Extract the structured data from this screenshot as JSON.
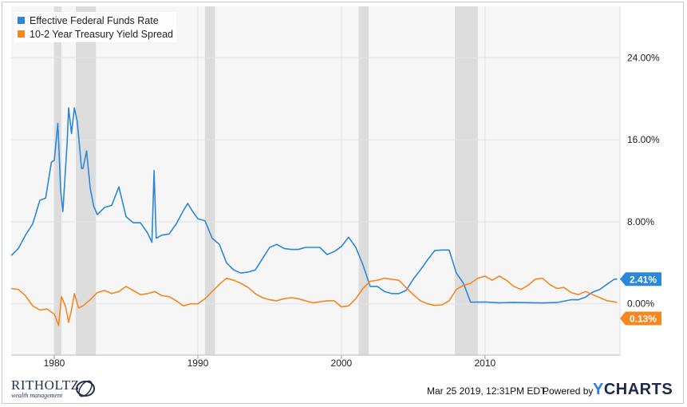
{
  "chart_data": {
    "type": "line",
    "title": "",
    "xlabel": "",
    "ylabel": "",
    "xlim": [
      1977,
      2019.4
    ],
    "ylim": [
      -5,
      29
    ],
    "x_ticks": [
      1980,
      1990,
      2000,
      2010
    ],
    "x_tick_labels": [
      "1980",
      "1990",
      "2000",
      "2010"
    ],
    "y_ticks": [
      0,
      8,
      16,
      24
    ],
    "y_tick_labels": [
      "0.00%",
      "8.00%",
      "16.00%",
      "24.00%"
    ],
    "grid": true,
    "legend_position": "top-left",
    "recessions": [
      [
        1980.0,
        1980.5
      ],
      [
        1981.5,
        1982.9
      ],
      [
        1990.5,
        1991.2
      ],
      [
        2001.2,
        2001.9
      ],
      [
        2007.9,
        2009.5
      ]
    ],
    "series": [
      {
        "name": "Effective Federal Funds Rate",
        "color": "#2b88d8",
        "end_label": "2.41%",
        "points": [
          [
            1977.0,
            4.7
          ],
          [
            1977.5,
            5.4
          ],
          [
            1978.0,
            6.7
          ],
          [
            1978.5,
            7.8
          ],
          [
            1979.0,
            10.1
          ],
          [
            1979.4,
            10.3
          ],
          [
            1979.8,
            13.8
          ],
          [
            1980.0,
            14.0
          ],
          [
            1980.25,
            17.6
          ],
          [
            1980.45,
            11.0
          ],
          [
            1980.6,
            9.0
          ],
          [
            1980.9,
            15.8
          ],
          [
            1981.0,
            19.1
          ],
          [
            1981.2,
            16.6
          ],
          [
            1981.4,
            19.1
          ],
          [
            1981.6,
            17.8
          ],
          [
            1981.9,
            13.2
          ],
          [
            1982.0,
            13.2
          ],
          [
            1982.25,
            14.9
          ],
          [
            1982.5,
            11.3
          ],
          [
            1982.75,
            9.5
          ],
          [
            1983.0,
            8.7
          ],
          [
            1983.5,
            9.4
          ],
          [
            1984.0,
            9.6
          ],
          [
            1984.5,
            11.4
          ],
          [
            1985.0,
            8.5
          ],
          [
            1985.5,
            7.9
          ],
          [
            1986.0,
            7.9
          ],
          [
            1986.5,
            6.9
          ],
          [
            1986.8,
            6.0
          ],
          [
            1986.95,
            13.0
          ],
          [
            1987.1,
            6.4
          ],
          [
            1987.5,
            6.7
          ],
          [
            1988.0,
            6.8
          ],
          [
            1988.5,
            7.8
          ],
          [
            1989.0,
            9.1
          ],
          [
            1989.3,
            9.8
          ],
          [
            1989.6,
            9.1
          ],
          [
            1990.0,
            8.3
          ],
          [
            1990.5,
            8.1
          ],
          [
            1991.0,
            6.4
          ],
          [
            1991.5,
            5.8
          ],
          [
            1992.0,
            4.0
          ],
          [
            1992.5,
            3.3
          ],
          [
            1993.0,
            3.0
          ],
          [
            1993.5,
            3.1
          ],
          [
            1994.0,
            3.3
          ],
          [
            1994.5,
            4.4
          ],
          [
            1995.0,
            5.5
          ],
          [
            1995.5,
            5.8
          ],
          [
            1996.0,
            5.4
          ],
          [
            1996.5,
            5.3
          ],
          [
            1997.0,
            5.3
          ],
          [
            1997.5,
            5.5
          ],
          [
            1998.0,
            5.5
          ],
          [
            1998.5,
            5.5
          ],
          [
            1999.0,
            4.8
          ],
          [
            1999.5,
            5.1
          ],
          [
            2000.0,
            5.6
          ],
          [
            2000.5,
            6.5
          ],
          [
            2001.0,
            5.5
          ],
          [
            2001.5,
            3.8
          ],
          [
            2002.0,
            1.7
          ],
          [
            2002.5,
            1.7
          ],
          [
            2003.0,
            1.2
          ],
          [
            2003.5,
            1.0
          ],
          [
            2004.0,
            1.0
          ],
          [
            2004.5,
            1.3
          ],
          [
            2005.0,
            2.4
          ],
          [
            2005.5,
            3.3
          ],
          [
            2006.0,
            4.3
          ],
          [
            2006.5,
            5.2
          ],
          [
            2007.0,
            5.25
          ],
          [
            2007.5,
            5.25
          ],
          [
            2008.0,
            3.0
          ],
          [
            2008.5,
            2.0
          ],
          [
            2009.0,
            0.16
          ],
          [
            2010.0,
            0.18
          ],
          [
            2011.0,
            0.1
          ],
          [
            2012.0,
            0.14
          ],
          [
            2013.0,
            0.11
          ],
          [
            2014.0,
            0.09
          ],
          [
            2015.0,
            0.13
          ],
          [
            2016.0,
            0.4
          ],
          [
            2016.5,
            0.4
          ],
          [
            2017.0,
            0.66
          ],
          [
            2017.5,
            1.15
          ],
          [
            2018.0,
            1.41
          ],
          [
            2018.5,
            1.91
          ],
          [
            2019.0,
            2.4
          ],
          [
            2019.2,
            2.41
          ]
        ]
      },
      {
        "name": "10-2 Year Treasury Yield Spread",
        "color": "#f5871f",
        "end_label": "0.13%",
        "points": [
          [
            1977.0,
            1.5
          ],
          [
            1977.5,
            1.4
          ],
          [
            1978.0,
            0.8
          ],
          [
            1978.5,
            -0.2
          ],
          [
            1979.0,
            -0.6
          ],
          [
            1979.5,
            -0.5
          ],
          [
            1980.0,
            -1.0
          ],
          [
            1980.3,
            -2.1
          ],
          [
            1980.5,
            0.7
          ],
          [
            1980.8,
            -0.3
          ],
          [
            1981.0,
            -1.8
          ],
          [
            1981.2,
            -0.6
          ],
          [
            1981.4,
            1.0
          ],
          [
            1981.7,
            -0.4
          ],
          [
            1982.0,
            -0.2
          ],
          [
            1982.5,
            0.4
          ],
          [
            1983.0,
            1.1
          ],
          [
            1983.5,
            1.3
          ],
          [
            1984.0,
            1.0
          ],
          [
            1984.5,
            1.2
          ],
          [
            1985.0,
            1.7
          ],
          [
            1985.5,
            1.3
          ],
          [
            1986.0,
            0.9
          ],
          [
            1986.5,
            1.0
          ],
          [
            1987.0,
            1.2
          ],
          [
            1987.5,
            0.8
          ],
          [
            1988.0,
            0.7
          ],
          [
            1988.5,
            0.3
          ],
          [
            1989.0,
            -0.2
          ],
          [
            1989.5,
            0.0
          ],
          [
            1990.0,
            0.0
          ],
          [
            1990.5,
            0.5
          ],
          [
            1991.0,
            1.2
          ],
          [
            1991.5,
            1.9
          ],
          [
            1992.0,
            2.5
          ],
          [
            1992.5,
            2.3
          ],
          [
            1993.0,
            2.0
          ],
          [
            1993.5,
            1.6
          ],
          [
            1994.0,
            1.0
          ],
          [
            1994.5,
            0.6
          ],
          [
            1995.0,
            0.4
          ],
          [
            1995.5,
            0.3
          ],
          [
            1996.0,
            0.5
          ],
          [
            1996.5,
            0.6
          ],
          [
            1997.0,
            0.5
          ],
          [
            1997.5,
            0.3
          ],
          [
            1998.0,
            0.1
          ],
          [
            1998.5,
            0.2
          ],
          [
            1999.0,
            0.3
          ],
          [
            1999.5,
            0.3
          ],
          [
            2000.0,
            -0.3
          ],
          [
            2000.5,
            -0.2
          ],
          [
            2001.0,
            0.5
          ],
          [
            2001.5,
            1.5
          ],
          [
            2002.0,
            2.2
          ],
          [
            2002.5,
            2.3
          ],
          [
            2003.0,
            2.5
          ],
          [
            2003.5,
            2.4
          ],
          [
            2004.0,
            2.3
          ],
          [
            2004.5,
            1.6
          ],
          [
            2005.0,
            0.9
          ],
          [
            2005.5,
            0.3
          ],
          [
            2006.0,
            0.0
          ],
          [
            2006.5,
            -0.15
          ],
          [
            2007.0,
            -0.1
          ],
          [
            2007.5,
            0.3
          ],
          [
            2008.0,
            1.4
          ],
          [
            2008.5,
            1.8
          ],
          [
            2009.0,
            2.0
          ],
          [
            2009.5,
            2.5
          ],
          [
            2010.0,
            2.7
          ],
          [
            2010.5,
            2.3
          ],
          [
            2011.0,
            2.7
          ],
          [
            2011.5,
            2.3
          ],
          [
            2012.0,
            1.7
          ],
          [
            2012.5,
            1.4
          ],
          [
            2013.0,
            1.8
          ],
          [
            2013.5,
            2.4
          ],
          [
            2014.0,
            2.5
          ],
          [
            2014.5,
            1.9
          ],
          [
            2015.0,
            1.5
          ],
          [
            2015.5,
            1.6
          ],
          [
            2016.0,
            1.1
          ],
          [
            2016.5,
            0.9
          ],
          [
            2017.0,
            1.2
          ],
          [
            2017.5,
            0.9
          ],
          [
            2018.0,
            0.6
          ],
          [
            2018.5,
            0.3
          ],
          [
            2019.0,
            0.2
          ],
          [
            2019.2,
            0.13
          ]
        ]
      }
    ]
  },
  "footer": {
    "timestamp": "Mar 25 2019, 12:31PM EDT.",
    "powered_by": "Powered by",
    "brand_y": "Y",
    "brand_rest": "CHARTS"
  },
  "logo": {
    "name": "RITHOLTZ",
    "subtitle": "wealth management"
  }
}
